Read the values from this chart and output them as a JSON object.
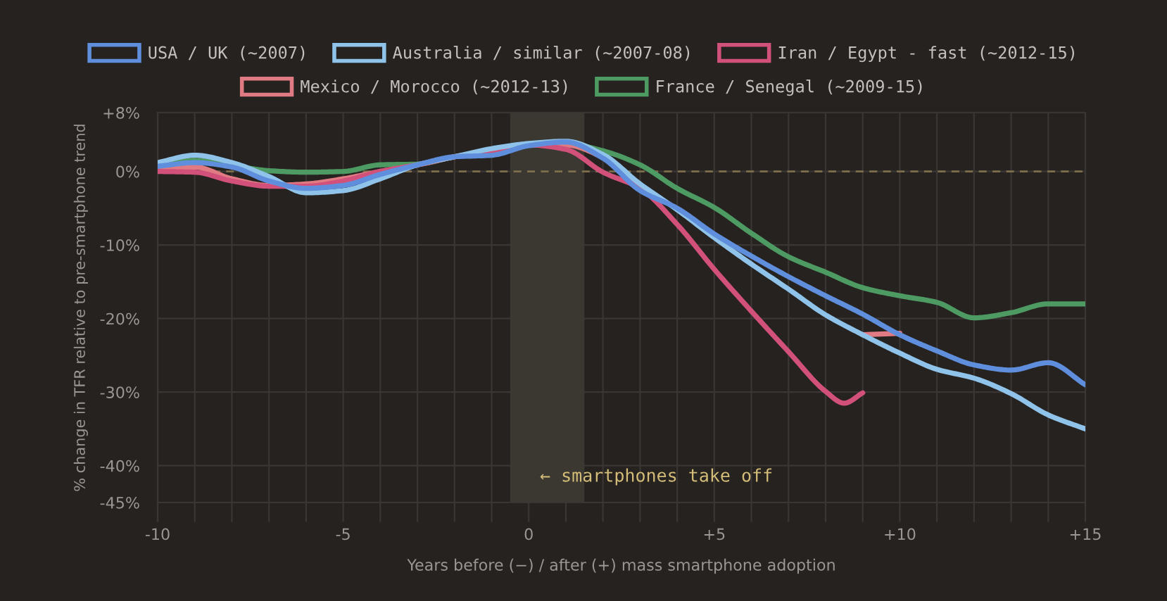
{
  "chart_data": {
    "type": "line",
    "xlabel": "Years before (−) / after (+) mass smartphone adoption",
    "ylabel": "% change in TFR relative to pre-smartphone trend",
    "x": [
      -10,
      -9,
      -8,
      -7,
      -6,
      -5,
      -4,
      -3,
      -2,
      -1,
      0,
      1,
      2,
      3,
      4,
      5,
      6,
      7,
      8,
      9,
      10,
      11,
      12,
      13,
      14,
      15
    ],
    "series": [
      {
        "name": "USA / UK (~2007)",
        "color": "#5f8fdc",
        "values": [
          0.7,
          1.2,
          0.6,
          -1.3,
          -2.3,
          -1.9,
          -0.4,
          0.9,
          2.0,
          2.2,
          3.5,
          4.0,
          1.8,
          -2.6,
          -5.0,
          -8.5,
          -11.5,
          -14.3,
          -16.9,
          -19.4,
          -22.2,
          -24.4,
          -26.3,
          -27.0,
          -26.0,
          -29.0
        ]
      },
      {
        "name": "Australia / similar (~2007-08)",
        "color": "#8fc3e9",
        "values": [
          1.2,
          2.2,
          1.2,
          -0.7,
          -2.9,
          -2.6,
          -1.0,
          0.9,
          2.0,
          3.1,
          3.8,
          4.1,
          2.3,
          -1.7,
          -5.2,
          -9.0,
          -12.6,
          -16.0,
          -19.5,
          -22.2,
          -24.7,
          -26.9,
          -28.1,
          -30.2,
          -33.1,
          -35.0
        ]
      },
      {
        "name": "Iran / Egypt - fast (~2012-15)",
        "color": "#d1517a",
        "x": [
          -10,
          -9,
          -8,
          -7,
          -6,
          -5,
          -4,
          -3,
          -2,
          -1,
          0,
          1,
          2,
          3,
          4,
          5,
          6,
          7,
          8,
          8.5,
          9
        ],
        "values": [
          0.0,
          -0.1,
          -1.3,
          -2.0,
          -2.0,
          -1.3,
          0.0,
          0.9,
          2.0,
          2.8,
          3.6,
          3.0,
          -0.1,
          -2.3,
          -7.2,
          -13.3,
          -19.0,
          -24.5,
          -29.9,
          -31.5,
          -30.1
        ]
      },
      {
        "name": "Mexico / Morocco (~2012-13)",
        "color": "#e07b83",
        "x": [
          -10,
          -9,
          -8,
          -7,
          -6,
          -5,
          -4,
          -3,
          -2,
          -1,
          0,
          1,
          2,
          3,
          4,
          5,
          6,
          7,
          8,
          9,
          10
        ],
        "values": [
          0.3,
          0.6,
          -1.0,
          -1.9,
          -1.7,
          -1.0,
          0.0,
          0.9,
          2.0,
          2.8,
          3.6,
          3.6,
          1.9,
          -1.8,
          null,
          null,
          null,
          null,
          null,
          -22.2,
          -22.0
        ]
      },
      {
        "name": "France / Senegal (~2009-15)",
        "color": "#4e9a63",
        "values": [
          1.0,
          1.5,
          0.8,
          0.1,
          -0.1,
          0.0,
          0.9,
          1.0,
          2.0,
          2.8,
          3.6,
          3.8,
          2.8,
          0.9,
          -2.3,
          -4.9,
          -8.4,
          -11.6,
          -13.7,
          -15.8,
          -16.9,
          -17.8,
          -19.9,
          -19.2,
          -18.0,
          -18.0
        ]
      }
    ],
    "xlim": [
      -10,
      15
    ],
    "xticks": [
      {
        "value": -10,
        "label": "-10"
      },
      {
        "value": -9,
        "label": null
      },
      {
        "value": -8,
        "label": null
      },
      {
        "value": -7,
        "label": null
      },
      {
        "value": -6,
        "label": null
      },
      {
        "value": -5,
        "label": "-5"
      },
      {
        "value": -4,
        "label": null
      },
      {
        "value": -3,
        "label": null
      },
      {
        "value": -2,
        "label": null
      },
      {
        "value": -1,
        "label": null
      },
      0,
      {
        "value": 1,
        "label": null
      },
      {
        "value": 2,
        "label": null
      },
      {
        "value": 3,
        "label": null
      },
      {
        "value": 4,
        "label": null
      },
      {
        "value": 5,
        "label": "+5"
      },
      {
        "value": 6,
        "label": null
      },
      {
        "value": 7,
        "label": null
      },
      {
        "value": 8,
        "label": null
      },
      {
        "value": 9,
        "label": null
      },
      {
        "value": 10,
        "label": "+10"
      },
      {
        "value": 11,
        "label": null
      },
      {
        "value": 12,
        "label": null
      },
      {
        "value": 13,
        "label": null
      },
      {
        "value": 14,
        "label": null
      },
      {
        "value": 15,
        "label": "+15"
      }
    ],
    "ylim": [
      -45,
      8
    ],
    "yticks": [
      {
        "value": -45,
        "label": "-45%"
      },
      {
        "value": -40,
        "label": "-40%"
      },
      {
        "value": -30,
        "label": "-30%"
      },
      {
        "value": -20,
        "label": "-20%"
      },
      {
        "value": -10,
        "label": "-10%"
      },
      {
        "value": 0,
        "label": "0%"
      },
      {
        "value": 8,
        "label": "+8%"
      }
    ],
    "ref_lines": [
      {
        "axis": "y",
        "value": 0,
        "color": "#7d6e4c",
        "line_style": "dashed"
      }
    ],
    "bands": [
      {
        "axis": "x",
        "from": -0.5,
        "to": 1.5,
        "label": "← smartphones take off",
        "color": "#3a3831"
      }
    ],
    "grid": true,
    "legend": "top"
  }
}
